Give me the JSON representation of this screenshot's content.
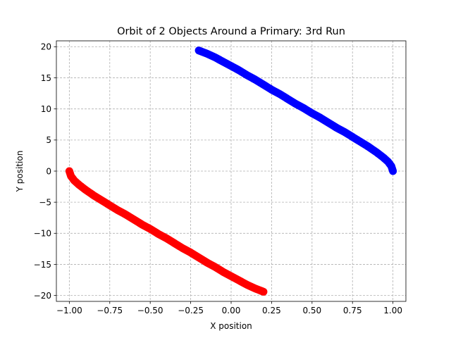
{
  "chart_data": {
    "type": "scatter",
    "title": "Orbit of 2 Objects Around a Primary: 3rd Run",
    "xlabel": "X position",
    "ylabel": "Y position",
    "xlim": [
      -1.08,
      1.08
    ],
    "ylim": [
      -20.95,
      20.95
    ],
    "xticks": [
      -1.0,
      -0.75,
      -0.5,
      -0.25,
      0.0,
      0.25,
      0.5,
      0.75,
      1.0
    ],
    "xtick_labels": [
      "−1.00",
      "−0.75",
      "−0.50",
      "−0.25",
      "0.00",
      "0.25",
      "0.50",
      "0.75",
      "1.00"
    ],
    "yticks": [
      -20,
      -15,
      -10,
      -5,
      0,
      5,
      10,
      15,
      20
    ],
    "ytick_labels": [
      "−20",
      "−15",
      "−10",
      "−5",
      "0",
      "5",
      "10",
      "15",
      "20"
    ],
    "grid": true,
    "series": [
      {
        "color": "#0000ff",
        "x": [
          1.0,
          0.99,
          0.97,
          0.94,
          0.9,
          0.85,
          0.8,
          0.75,
          0.7,
          0.65,
          0.6,
          0.55,
          0.5,
          0.45,
          0.4,
          0.35,
          0.3,
          0.25,
          0.2,
          0.15,
          0.1,
          0.05,
          0.0,
          -0.05,
          -0.1,
          -0.15,
          -0.2
        ],
        "y": [
          0.0,
          0.8,
          1.5,
          2.2,
          3.0,
          3.9,
          4.7,
          5.5,
          6.3,
          7.0,
          7.8,
          8.6,
          9.3,
          10.1,
          10.8,
          11.6,
          12.4,
          13.1,
          13.9,
          14.7,
          15.4,
          16.2,
          16.9,
          17.6,
          18.3,
          18.9,
          19.4
        ]
      },
      {
        "color": "#ff0000",
        "x": [
          -1.0,
          -0.99,
          -0.97,
          -0.94,
          -0.9,
          -0.85,
          -0.8,
          -0.75,
          -0.7,
          -0.65,
          -0.6,
          -0.55,
          -0.5,
          -0.45,
          -0.4,
          -0.35,
          -0.3,
          -0.25,
          -0.2,
          -0.15,
          -0.1,
          -0.05,
          0.0,
          0.05,
          0.1,
          0.15,
          0.2
        ],
        "y": [
          0.0,
          -0.8,
          -1.5,
          -2.2,
          -3.0,
          -3.9,
          -4.7,
          -5.5,
          -6.3,
          -7.0,
          -7.8,
          -8.6,
          -9.3,
          -10.1,
          -10.8,
          -11.6,
          -12.4,
          -13.1,
          -13.9,
          -14.7,
          -15.4,
          -16.2,
          -16.9,
          -17.6,
          -18.3,
          -18.9,
          -19.4
        ]
      }
    ]
  }
}
